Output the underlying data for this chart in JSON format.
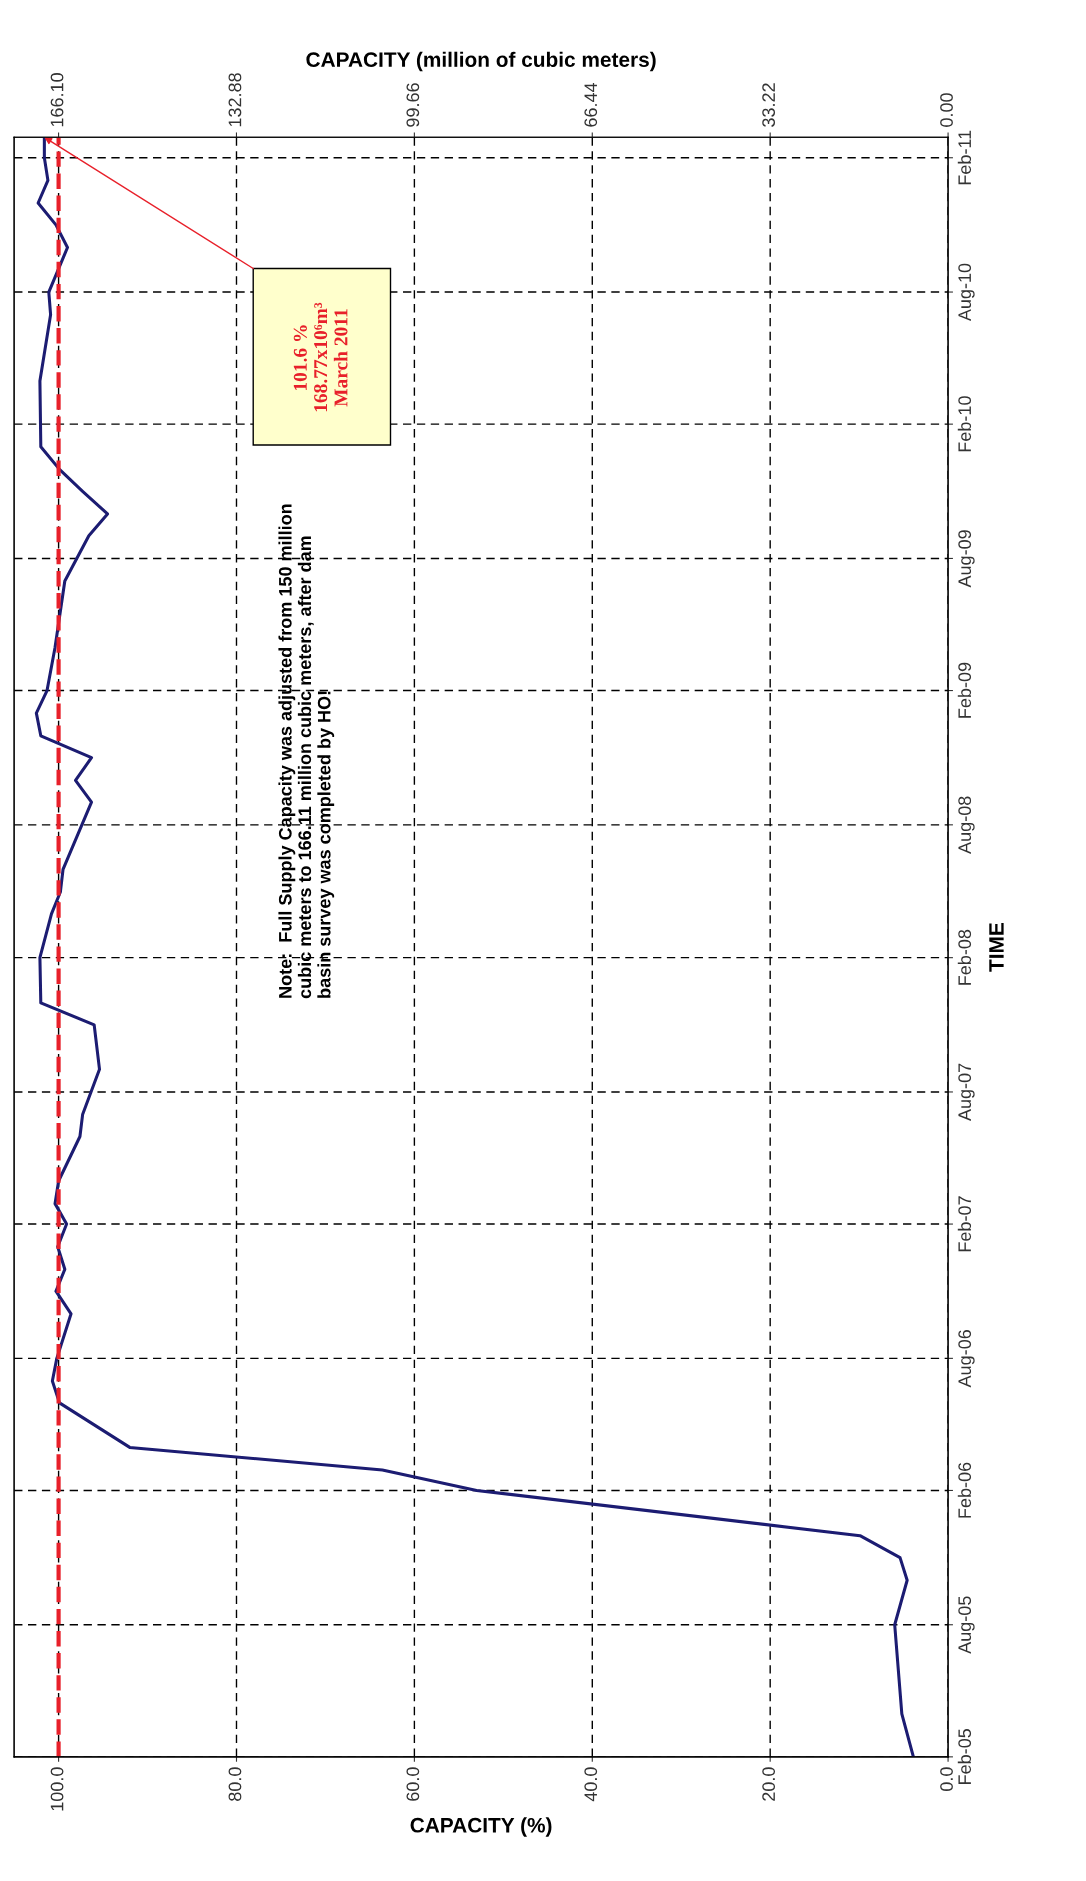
{
  "chart_data": {
    "type": "line",
    "orientation": "horizontal",
    "xlabel": "CAPACITY (%)",
    "x2label": "CAPACITY (million of cubic meters)",
    "ylabel": "TIME",
    "xlim": [
      105,
      0
    ],
    "xticks": [
      {
        "value": 100,
        "label": "100.0"
      },
      {
        "value": 80,
        "label": "80.0"
      },
      {
        "value": 60,
        "label": "60.0"
      },
      {
        "value": 40,
        "label": "40.0"
      },
      {
        "value": 20,
        "label": "20.0"
      },
      {
        "value": 0,
        "label": "0.0"
      }
    ],
    "x2lim": [
      174.4,
      0
    ],
    "x2ticks": [
      {
        "value": 166.1,
        "label": "166.10"
      },
      {
        "value": 132.88,
        "label": "132.88"
      },
      {
        "value": 99.66,
        "label": "99.66"
      },
      {
        "value": 66.44,
        "label": "66.44"
      },
      {
        "value": 33.22,
        "label": "33.22"
      },
      {
        "value": 0,
        "label": "0.00"
      }
    ],
    "ylim": [
      "2005-02",
      "2011-03"
    ],
    "yticks": [
      {
        "value": "2005-02",
        "label": "Feb-05"
      },
      {
        "value": "2005-08",
        "label": "Aug-05"
      },
      {
        "value": "2006-02",
        "label": "Feb-06"
      },
      {
        "value": "2006-08",
        "label": "Aug-06"
      },
      {
        "value": "2007-02",
        "label": "Feb-07"
      },
      {
        "value": "2007-08",
        "label": "Aug-07"
      },
      {
        "value": "2008-02",
        "label": "Feb-08"
      },
      {
        "value": "2008-08",
        "label": "Aug-08"
      },
      {
        "value": "2009-02",
        "label": "Feb-09"
      },
      {
        "value": "2009-08",
        "label": "Aug-09"
      },
      {
        "value": "2010-02",
        "label": "Feb-10"
      },
      {
        "value": "2010-08",
        "label": "Aug-10"
      },
      {
        "value": "2011-02",
        "label": "Feb-11"
      }
    ],
    "grid": true,
    "series": [
      {
        "color": "#1c1c72",
        "x": [
          "2005-02",
          "2005-04",
          "2005-08",
          "2005-10",
          "2005-11",
          "2005-12",
          "2006-02",
          "2006-03",
          "2006-04",
          "2006-06",
          "2006-07",
          "2006-08",
          "2006-10",
          "2006-11",
          "2006-12",
          "2007-01",
          "2007-02",
          "2007-03",
          "2007-04",
          "2007-06",
          "2007-07",
          "2007-09",
          "2007-11",
          "2007-12",
          "2008-02",
          "2008-04",
          "2008-05",
          "2008-06",
          "2008-09",
          "2008-10",
          "2008-11",
          "2008-12",
          "2009-01",
          "2009-02",
          "2009-04",
          "2009-07",
          "2009-09",
          "2009-10",
          "2009-11",
          "2009-12",
          "2010-01",
          "2010-04",
          "2010-07",
          "2010-08",
          "2010-10",
          "2010-11",
          "2010-12",
          "2011-01",
          "2011-02",
          "2011-03"
        ],
        "values": [
          3.9,
          5.2,
          6.0,
          4.6,
          5.4,
          9.9,
          53.0,
          63.6,
          92.0,
          99.9,
          100.7,
          100.2,
          98.6,
          100.3,
          99.3,
          100.1,
          99.1,
          100.4,
          100.0,
          97.6,
          97.3,
          95.4,
          96.0,
          102.0,
          102.1,
          100.8,
          99.8,
          99.5,
          96.3,
          98.1,
          96.3,
          102.0,
          102.5,
          101.3,
          100.4,
          99.3,
          96.6,
          94.5,
          97.3,
          99.9,
          102.0,
          102.1,
          100.9,
          101.1,
          99.0,
          100.3,
          102.3,
          101.2,
          101.6,
          101.6
        ]
      }
    ],
    "ref_lines": [
      {
        "axis": "x",
        "value": 100,
        "color": "#e8202a",
        "line_style": "dashed"
      }
    ],
    "annotations": [
      "Note:  Full Supply Capacity was adjusted from 150 million\ncubic meters to 166.11 million cubic meters, after dam\nbasin survey was completed by HO!",
      "101.6 %\n168.77x10⁶m³\nMarch 2011"
    ]
  }
}
